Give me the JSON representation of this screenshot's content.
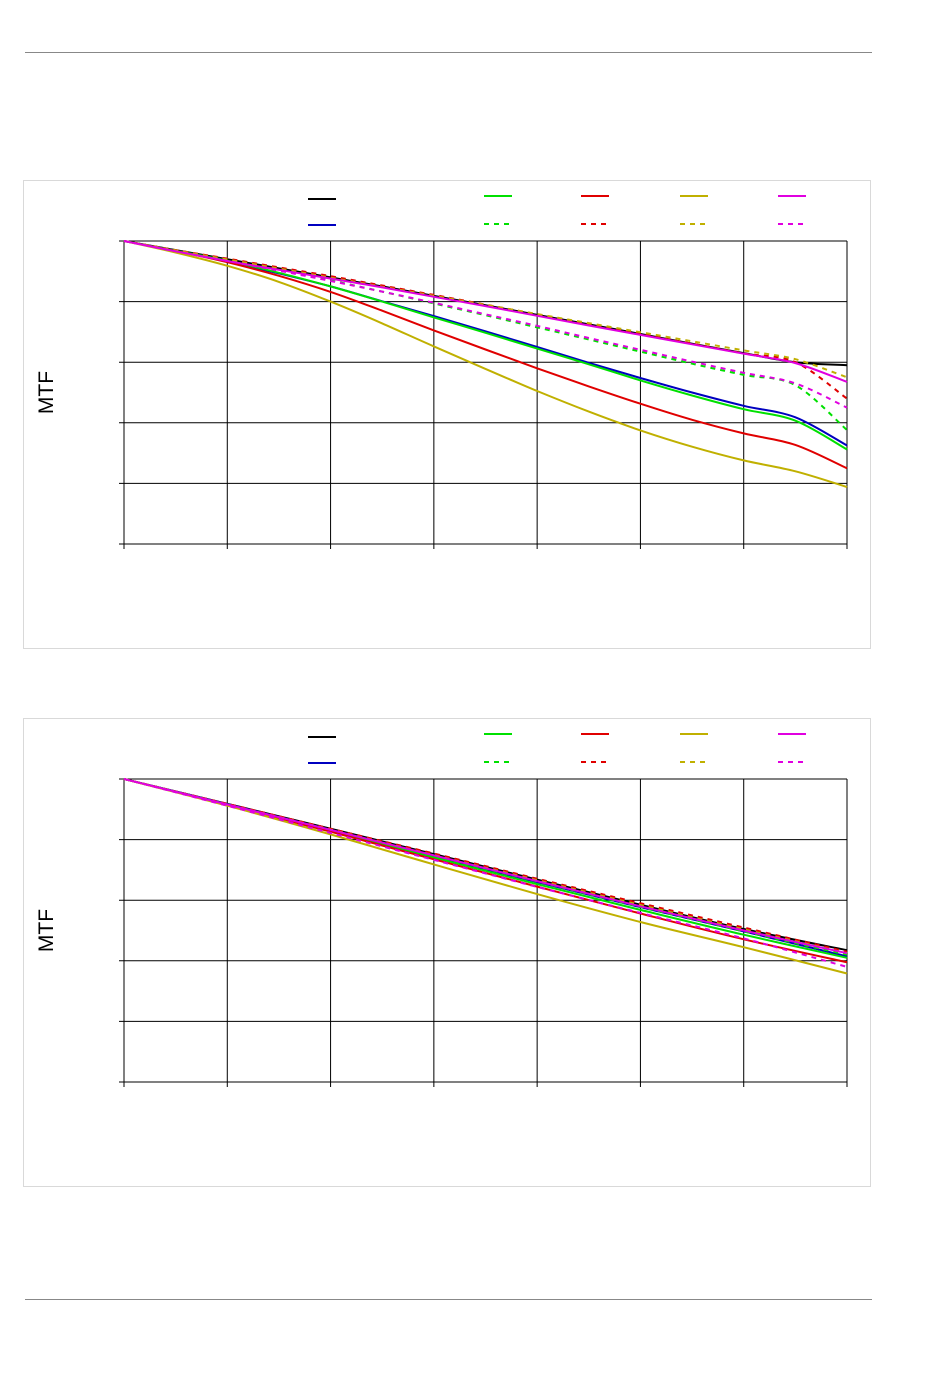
{
  "chart_data": [
    {
      "type": "line",
      "title": "",
      "xlabel": "",
      "ylabel": "MTF",
      "xlim": [
        0,
        7
      ],
      "ylim": [
        0,
        1
      ],
      "grid": true,
      "legend_placement": "top",
      "x": [
        0,
        0.5,
        1,
        1.5,
        2,
        2.5,
        3,
        3.5,
        4,
        4.5,
        5,
        5.5,
        6,
        6.5,
        7
      ],
      "series": [
        {
          "color": "#000000",
          "style": "solid",
          "values": [
            1.0,
            0.97,
            0.94,
            0.91,
            0.88,
            0.85,
            0.819,
            0.788,
            0.756,
            0.725,
            0.693,
            0.661,
            0.63,
            0.6,
            0.59
          ]
        },
        {
          "color": "#0000c0",
          "style": "solid",
          "values": [
            1.0,
            0.968,
            0.932,
            0.893,
            0.85,
            0.801,
            0.752,
            0.702,
            0.65,
            0.598,
            0.548,
            0.5,
            0.456,
            0.418,
            0.325
          ]
        },
        {
          "color": "#00e000",
          "style": "solid",
          "values": [
            1.0,
            0.968,
            0.935,
            0.895,
            0.85,
            0.8,
            0.748,
            0.697,
            0.645,
            0.593,
            0.54,
            0.49,
            0.445,
            0.407,
            0.312
          ]
        },
        {
          "color": "#00e000",
          "style": "dashed",
          "values": [
            1.0,
            0.969,
            0.938,
            0.905,
            0.87,
            0.833,
            0.794,
            0.755,
            0.715,
            0.675,
            0.635,
            0.595,
            0.558,
            0.524,
            0.376
          ]
        },
        {
          "color": "#e00000",
          "style": "solid",
          "values": [
            1.0,
            0.967,
            0.93,
            0.885,
            0.832,
            0.77,
            0.705,
            0.642,
            0.58,
            0.52,
            0.463,
            0.41,
            0.365,
            0.327,
            0.25
          ]
        },
        {
          "color": "#e00000",
          "style": "dashed",
          "values": [
            1.0,
            0.97,
            0.942,
            0.913,
            0.884,
            0.853,
            0.822,
            0.79,
            0.758,
            0.725,
            0.693,
            0.661,
            0.629,
            0.6,
            0.48
          ]
        },
        {
          "color": "#c0b000",
          "style": "solid",
          "values": [
            1.0,
            0.962,
            0.918,
            0.865,
            0.8,
            0.728,
            0.652,
            0.578,
            0.505,
            0.437,
            0.375,
            0.321,
            0.276,
            0.24,
            0.188
          ]
        },
        {
          "color": "#c0b000",
          "style": "dashed",
          "values": [
            1.0,
            0.969,
            0.939,
            0.909,
            0.879,
            0.849,
            0.819,
            0.789,
            0.759,
            0.729,
            0.699,
            0.669,
            0.639,
            0.61,
            0.55
          ]
        },
        {
          "color": "#e000e0",
          "style": "solid",
          "values": [
            1.0,
            0.966,
            0.934,
            0.905,
            0.876,
            0.847,
            0.816,
            0.785,
            0.753,
            0.721,
            0.69,
            0.659,
            0.628,
            0.597,
            0.535
          ]
        },
        {
          "color": "#e000e0",
          "style": "dashed",
          "values": [
            1.0,
            0.966,
            0.934,
            0.902,
            0.868,
            0.833,
            0.796,
            0.758,
            0.72,
            0.68,
            0.641,
            0.602,
            0.565,
            0.53,
            0.45
          ]
        }
      ]
    },
    {
      "type": "line",
      "title": "",
      "xlabel": "",
      "ylabel": "MTF",
      "xlim": [
        0,
        7
      ],
      "ylim": [
        0,
        1
      ],
      "grid": true,
      "legend_placement": "top",
      "x": [
        0,
        1,
        2,
        3,
        4,
        5,
        6,
        7
      ],
      "series": [
        {
          "color": "#000000",
          "style": "solid",
          "values": [
            1.0,
            0.918,
            0.836,
            0.752,
            0.668,
            0.585,
            0.505,
            0.435
          ]
        },
        {
          "color": "#0000c0",
          "style": "solid",
          "values": [
            1.0,
            0.917,
            0.832,
            0.745,
            0.66,
            0.577,
            0.497,
            0.415
          ]
        },
        {
          "color": "#00e000",
          "style": "solid",
          "values": [
            1.0,
            0.916,
            0.829,
            0.741,
            0.653,
            0.568,
            0.486,
            0.41
          ]
        },
        {
          "color": "#00e000",
          "style": "dashed",
          "values": [
            1.0,
            0.916,
            0.832,
            0.746,
            0.662,
            0.578,
            0.497,
            0.42
          ]
        },
        {
          "color": "#e00000",
          "style": "solid",
          "values": [
            1.0,
            0.914,
            0.826,
            0.735,
            0.645,
            0.556,
            0.471,
            0.395
          ]
        },
        {
          "color": "#e00000",
          "style": "dashed",
          "values": [
            1.0,
            0.918,
            0.836,
            0.754,
            0.671,
            0.59,
            0.51,
            0.43
          ]
        },
        {
          "color": "#c0b000",
          "style": "solid",
          "values": [
            1.0,
            0.912,
            0.817,
            0.718,
            0.62,
            0.528,
            0.445,
            0.358
          ]
        },
        {
          "color": "#c0b000",
          "style": "dashed",
          "values": [
            1.0,
            0.916,
            0.833,
            0.749,
            0.666,
            0.584,
            0.504,
            0.425
          ]
        },
        {
          "color": "#e000e0",
          "style": "solid",
          "values": [
            1.0,
            0.916,
            0.832,
            0.748,
            0.663,
            0.58,
            0.5,
            0.425
          ]
        },
        {
          "color": "#e000e0",
          "style": "dashed",
          "values": [
            1.0,
            0.912,
            0.822,
            0.733,
            0.644,
            0.558,
            0.474,
            0.38
          ]
        }
      ]
    }
  ]
}
